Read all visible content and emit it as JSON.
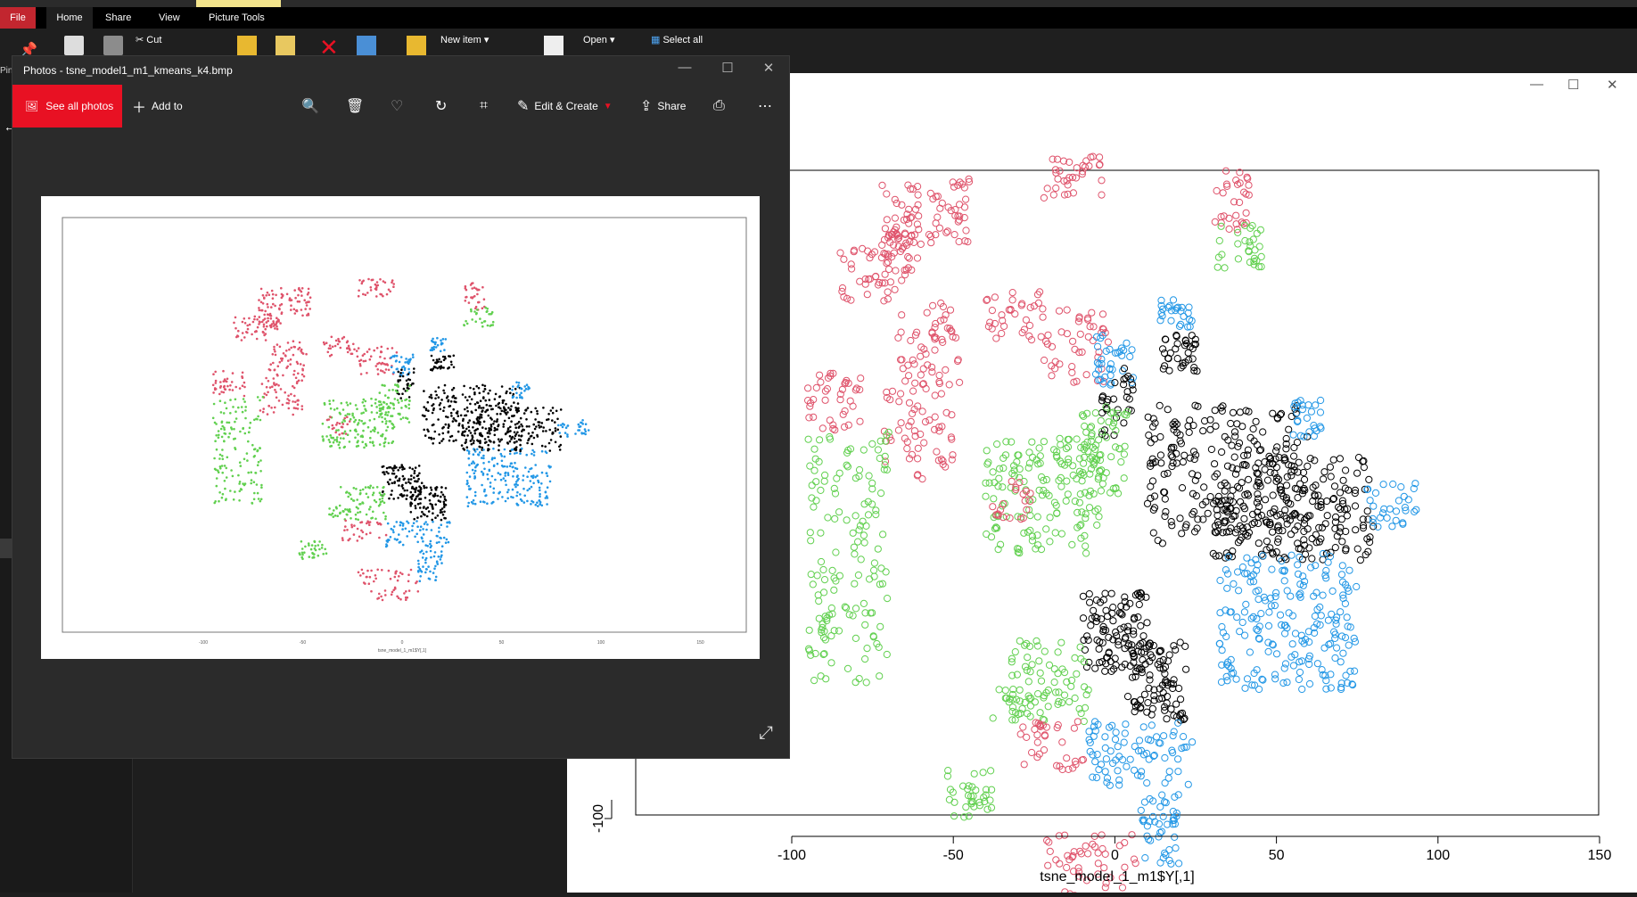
{
  "explorer": {
    "tabs": [
      "File",
      "Home",
      "Share",
      "View",
      "Picture Tools"
    ],
    "ribbon": {
      "cut": "Cut",
      "new_item": "New item",
      "open": "Open",
      "select_all": "Select all",
      "pin_fragment": "Pin"
    }
  },
  "photos": {
    "title": "Photos - tsne_model1_m1_kmeans_k4.bmp",
    "see_all": "See all photos",
    "add_to": "Add to",
    "edit_create": "Edit & Create",
    "share": "Share",
    "icons": [
      "zoom-icon",
      "delete-icon",
      "favorite-icon",
      "rotate-icon",
      "crop-icon",
      "edit-icon",
      "share-icon",
      "print-icon",
      "more-icon",
      "expand-icon"
    ]
  },
  "chart_data": {
    "type": "scatter",
    "xlabel": "tsne_model_1_m1$Y[,1]",
    "ylabel": "",
    "x_ticks": [
      "-100",
      "-50",
      "0",
      "50",
      "100",
      "150"
    ],
    "y_ticks": [
      "-100"
    ],
    "xlim": [
      -148,
      150
    ],
    "colors": {
      "black": "#000000",
      "red": "#df536b",
      "green": "#61d04f",
      "blue": "#2297e6"
    },
    "point_style": "open circles",
    "clusters": [
      {
        "color": "red",
        "x": [
          -72,
          -60
        ],
        "y": [
          72,
          98
        ],
        "n": 45
      },
      {
        "color": "red",
        "x": [
          -70,
          -62
        ],
        "y": [
          66,
          82
        ],
        "n": 25
      },
      {
        "color": "red",
        "x": [
          -58,
          -45
        ],
        "y": [
          78,
          98
        ],
        "n": 40
      },
      {
        "color": "red",
        "x": [
          -22,
          -4
        ],
        "y": [
          92,
          105
        ],
        "n": 35
      },
      {
        "color": "red",
        "x": [
          31,
          42
        ],
        "y": [
          82,
          102
        ],
        "n": 30
      },
      {
        "color": "green",
        "x": [
          31,
          46
        ],
        "y": [
          70,
          84
        ],
        "n": 30
      },
      {
        "color": "red",
        "x": [
          -85,
          -68
        ],
        "y": [
          60,
          78
        ],
        "n": 40
      },
      {
        "color": "red",
        "x": [
          -68,
          -48
        ],
        "y": [
          34,
          60
        ],
        "n": 55
      },
      {
        "color": "red",
        "x": [
          -40,
          -22
        ],
        "y": [
          48,
          63
        ],
        "n": 35
      },
      {
        "color": "red",
        "x": [
          -22,
          -2
        ],
        "y": [
          35,
          58
        ],
        "n": 45
      },
      {
        "color": "blue",
        "x": [
          -6,
          6
        ],
        "y": [
          34,
          50
        ],
        "n": 35
      },
      {
        "color": "black",
        "x": [
          -4,
          6
        ],
        "y": [
          18,
          40
        ],
        "n": 30
      },
      {
        "color": "blue",
        "x": [
          14,
          24
        ],
        "y": [
          52,
          62
        ],
        "n": 25
      },
      {
        "color": "black",
        "x": [
          14,
          26
        ],
        "y": [
          38,
          50
        ],
        "n": 35
      },
      {
        "color": "red",
        "x": [
          -95,
          -78
        ],
        "y": [
          20,
          38
        ],
        "n": 40
      },
      {
        "color": "red",
        "x": [
          -72,
          -50
        ],
        "y": [
          5,
          35
        ],
        "n": 60
      },
      {
        "color": "green",
        "x": [
          -95,
          -70
        ],
        "y": [
          -58,
          20
        ],
        "n": 150
      },
      {
        "color": "green",
        "x": [
          -40,
          -4
        ],
        "y": [
          -18,
          18
        ],
        "n": 160
      },
      {
        "color": "green",
        "x": [
          -12,
          4
        ],
        "y": [
          0,
          28
        ],
        "n": 60
      },
      {
        "color": "red",
        "x": [
          -38,
          -26
        ],
        "y": [
          -8,
          5
        ],
        "n": 20
      },
      {
        "color": "black",
        "x": [
          10,
          60
        ],
        "y": [
          -15,
          28
        ],
        "n": 240
      },
      {
        "color": "black",
        "x": [
          30,
          80
        ],
        "y": [
          -20,
          12
        ],
        "n": 200
      },
      {
        "color": "blue",
        "x": [
          55,
          64
        ],
        "y": [
          18,
          30
        ],
        "n": 25
      },
      {
        "color": "blue",
        "x": [
          78,
          94
        ],
        "y": [
          -10,
          4
        ],
        "n": 30
      },
      {
        "color": "blue",
        "x": [
          32,
          75
        ],
        "y": [
          -60,
          -18
        ],
        "n": 210
      },
      {
        "color": "black",
        "x": [
          -10,
          10
        ],
        "y": [
          -55,
          -30
        ],
        "n": 100
      },
      {
        "color": "black",
        "x": [
          4,
          22
        ],
        "y": [
          -70,
          -45
        ],
        "n": 90
      },
      {
        "color": "green",
        "x": [
          -32,
          -8
        ],
        "y": [
          -70,
          -45
        ],
        "n": 70
      },
      {
        "color": "green",
        "x": [
          -38,
          -26
        ],
        "y": [
          -70,
          -60
        ],
        "n": 20
      },
      {
        "color": "red",
        "x": [
          -30,
          -8
        ],
        "y": [
          -85,
          -70
        ],
        "n": 35
      },
      {
        "color": "blue",
        "x": [
          -8,
          24
        ],
        "y": [
          -90,
          -70
        ],
        "n": 80
      },
      {
        "color": "blue",
        "x": [
          8,
          20
        ],
        "y": [
          -115,
          -92
        ],
        "n": 45
      },
      {
        "color": "green",
        "x": [
          -52,
          -38
        ],
        "y": [
          -100,
          -85
        ],
        "n": 35
      },
      {
        "color": "red",
        "x": [
          -22,
          8
        ],
        "y": [
          -128,
          -105
        ],
        "n": 55
      }
    ]
  }
}
